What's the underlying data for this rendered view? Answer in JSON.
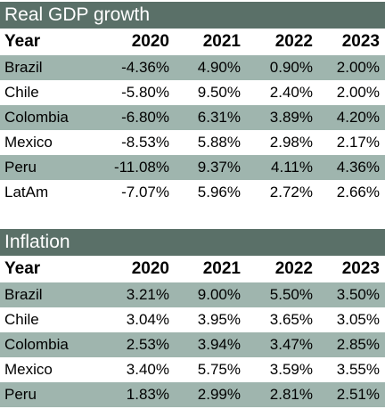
{
  "gdp": {
    "title": "Real GDP growth",
    "columns": [
      "Year",
      "2020",
      "2021",
      "2022",
      "2023"
    ],
    "rows": [
      [
        "Brazil",
        "-4.36%",
        "4.90%",
        "0.90%",
        "2.00%"
      ],
      [
        "Chile",
        "-5.80%",
        "9.50%",
        "2.40%",
        "2.00%"
      ],
      [
        "Colombia",
        "-6.80%",
        "6.31%",
        "3.89%",
        "4.20%"
      ],
      [
        "Mexico",
        "-8.53%",
        "5.88%",
        "2.98%",
        "2.17%"
      ],
      [
        "Peru",
        "-11.08%",
        "9.37%",
        "4.11%",
        "4.36%"
      ],
      [
        "LatAm",
        "-7.07%",
        "5.96%",
        "2.72%",
        "2.66%"
      ]
    ]
  },
  "inflation": {
    "title": "Inflation",
    "columns": [
      "Year",
      "2020",
      "2021",
      "2022",
      "2023"
    ],
    "rows": [
      [
        "Brazil",
        "3.21%",
        "9.00%",
        "5.50%",
        "3.50%"
      ],
      [
        "Chile",
        "3.04%",
        "3.95%",
        "3.65%",
        "3.05%"
      ],
      [
        "Colombia",
        "2.53%",
        "3.94%",
        "3.47%",
        "2.85%"
      ],
      [
        "Mexico",
        "3.40%",
        "5.75%",
        "3.59%",
        "3.55%"
      ],
      [
        "Peru",
        "1.83%",
        "2.99%",
        "2.81%",
        "2.51%"
      ]
    ]
  },
  "colors": {
    "title_bar": "#5a7068",
    "shaded_row": "#9fb5ae"
  }
}
